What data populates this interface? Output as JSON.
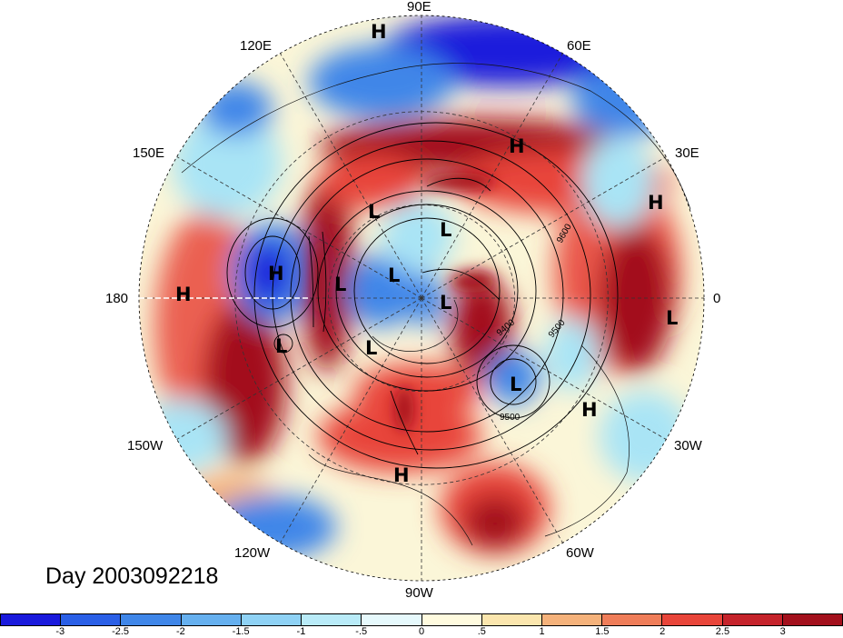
{
  "map": {
    "day_label": "Day 2003092218",
    "longitude_labels": [
      {
        "id": "lon-90e",
        "text": "90E"
      },
      {
        "id": "lon-60e",
        "text": "60E"
      },
      {
        "id": "lon-120e",
        "text": "120E"
      },
      {
        "id": "lon-150e",
        "text": "150E"
      },
      {
        "id": "lon-30e",
        "text": "30E"
      },
      {
        "id": "lon-180",
        "text": "180"
      },
      {
        "id": "lon-0",
        "text": "0"
      },
      {
        "id": "lon-150w",
        "text": "150W"
      },
      {
        "id": "lon-30w",
        "text": "30W"
      },
      {
        "id": "lon-120w",
        "text": "120W"
      },
      {
        "id": "lon-60w",
        "text": "60W"
      },
      {
        "id": "lon-90w",
        "text": "90W"
      }
    ],
    "pressure_markers": [
      "H",
      "H",
      "H",
      "H",
      "L",
      "L",
      "H",
      "L",
      "L",
      "L",
      "L",
      "L",
      "L",
      "H",
      "H",
      "L"
    ],
    "contour_labels": [
      "9600",
      "9400",
      "9500",
      "9500"
    ],
    "anomaly_colors": {
      "strong_negative": "#1a1adc",
      "medium_negative": "#3f86e8",
      "light_negative": "#a9e4f5",
      "neutral": "#fbf6d8",
      "light_positive": "#f5b27b",
      "medium_positive": "#e8453a",
      "strong_positive": "#a3101c"
    }
  },
  "colorbar": {
    "colors": [
      "#1a1adc",
      "#2a5fe6",
      "#3f86e8",
      "#66b0ef",
      "#8fd2f5",
      "#b9ebf8",
      "#e6f9fc",
      "#fffbdf",
      "#fbe6ae",
      "#f5b27b",
      "#ef7d59",
      "#e8453a",
      "#c5232b",
      "#a3101c"
    ],
    "ticks": [
      "-3",
      "-2.5",
      "-2",
      "-1.5",
      "-1",
      "-.5",
      "0",
      ".5",
      "1",
      "1.5",
      "2",
      "2.5",
      "3"
    ]
  }
}
